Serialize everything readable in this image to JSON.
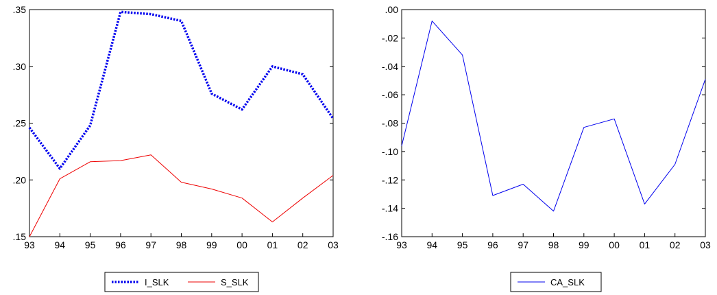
{
  "chart_data": [
    {
      "type": "line",
      "categories": [
        "93",
        "94",
        "95",
        "96",
        "97",
        "98",
        "99",
        "00",
        "01",
        "02",
        "03"
      ],
      "series": [
        {
          "name": "I_SLK",
          "color": "#0000ee",
          "style": "dotted-thick",
          "values": [
            0.246,
            0.21,
            0.248,
            0.348,
            0.346,
            0.34,
            0.276,
            0.262,
            0.3,
            0.293,
            0.254
          ]
        },
        {
          "name": "S_SLK",
          "color": "#ee0000",
          "style": "solid",
          "values": [
            0.15,
            0.201,
            0.216,
            0.217,
            0.222,
            0.198,
            0.192,
            0.184,
            0.163,
            0.184,
            0.204
          ]
        }
      ],
      "ylim": [
        0.15,
        0.35
      ],
      "yticks": [
        ".35",
        ".30",
        ".25",
        ".20",
        ".15"
      ],
      "ytick_values": [
        0.35,
        0.3,
        0.25,
        0.2,
        0.15
      ],
      "grid": false,
      "legend_placement": "bottom-center"
    },
    {
      "type": "line",
      "categories": [
        "93",
        "94",
        "95",
        "96",
        "97",
        "98",
        "99",
        "00",
        "01",
        "02",
        "03"
      ],
      "series": [
        {
          "name": "CA_SLK",
          "color": "#0000ee",
          "style": "solid",
          "values": [
            -0.096,
            -0.008,
            -0.032,
            -0.131,
            -0.123,
            -0.142,
            -0.083,
            -0.077,
            -0.137,
            -0.109,
            -0.049
          ]
        }
      ],
      "ylim": [
        -0.16,
        0.0
      ],
      "yticks": [
        ".00",
        "-.02",
        "-.04",
        "-.06",
        "-.08",
        "-.10",
        "-.12",
        "-.14",
        "-.16"
      ],
      "ytick_values": [
        0.0,
        -0.02,
        -0.04,
        -0.06,
        -0.08,
        -0.1,
        -0.12,
        -0.14,
        -0.16
      ],
      "grid": false,
      "legend_placement": "bottom-center"
    }
  ]
}
